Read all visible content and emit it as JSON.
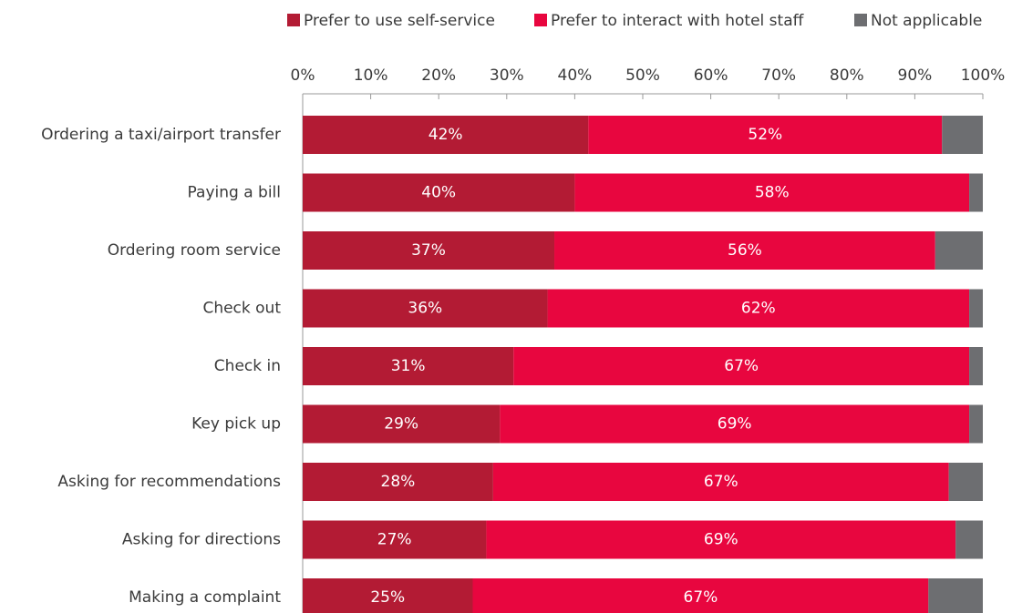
{
  "chart_data": {
    "type": "stacked_bar_horizontal",
    "categories": [
      "Ordering a taxi/airport transfer",
      "Paying a bill",
      "Ordering room service",
      "Check out",
      "Check in",
      "Key pick up",
      "Asking for recommendations",
      "Asking for directions",
      "Making a complaint"
    ],
    "series": [
      {
        "name": "Prefer to use self-service",
        "color": "#b31b34",
        "values": [
          42,
          40,
          37,
          36,
          31,
          29,
          28,
          27,
          25
        ],
        "value_labels": [
          "42%",
          "40%",
          "37%",
          "36%",
          "31%",
          "29%",
          "28%",
          "27%",
          "25%"
        ]
      },
      {
        "name": "Prefer to interact with hotel staff",
        "color": "#e8063f",
        "values": [
          52,
          58,
          56,
          62,
          67,
          69,
          67,
          69,
          67
        ],
        "value_labels": [
          "52%",
          "58%",
          "56%",
          "62%",
          "67%",
          "69%",
          "67%",
          "69%",
          "67%"
        ]
      },
      {
        "name": "Not applicable",
        "color": "#6d6e71",
        "values": [
          6,
          2,
          7,
          2,
          2,
          2,
          5,
          4,
          8
        ]
      }
    ],
    "xlim": [
      0,
      100
    ],
    "xticks": [
      {
        "value": 0,
        "label": "0%"
      },
      {
        "value": 10,
        "label": "10%"
      },
      {
        "value": 20,
        "label": "20%"
      },
      {
        "value": 30,
        "label": "30%"
      },
      {
        "value": 40,
        "label": "40%"
      },
      {
        "value": 50,
        "label": "50%"
      },
      {
        "value": 60,
        "label": "60%"
      },
      {
        "value": 70,
        "label": "70%"
      },
      {
        "value": 80,
        "label": "80%"
      },
      {
        "value": 90,
        "label": "90%"
      },
      {
        "value": 100,
        "label": "100%"
      }
    ],
    "legend": "top"
  }
}
